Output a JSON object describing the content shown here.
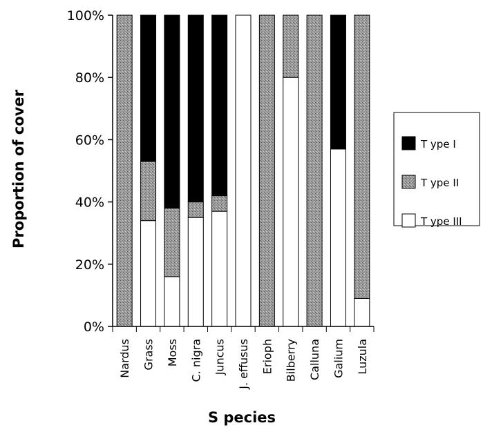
{
  "chart_data": {
    "type": "bar",
    "stacked": true,
    "normalized": true,
    "categories": [
      "Nardus",
      "Grass",
      "Moss",
      "C. nigra",
      "Juncus",
      "J. effusus",
      "Erioph",
      "Bilberry",
      "Calluna",
      "Galium",
      "Luzula"
    ],
    "series": [
      {
        "name": "Type III",
        "values": [
          0,
          34,
          16,
          35,
          37,
          100,
          0,
          80,
          0,
          57,
          9
        ],
        "color": "#ffffff"
      },
      {
        "name": "Type II",
        "values": [
          100,
          19,
          22,
          5,
          5,
          0,
          100,
          20,
          100,
          0,
          91
        ],
        "color": "#8c8c8c"
      },
      {
        "name": "Type I",
        "values": [
          0,
          47,
          62,
          60,
          58,
          0,
          0,
          0,
          0,
          43,
          0
        ],
        "color": "#000000"
      }
    ],
    "legend_order": [
      "Type I",
      "Type II",
      "Type III"
    ],
    "legend_labels": [
      "T ype I",
      "T ype II",
      "T ype III"
    ],
    "legend_position": "right",
    "ylim": [
      0,
      100
    ],
    "yticks": [
      "0%",
      "20%",
      "40%",
      "60%",
      "80%",
      "100%"
    ],
    "xlabel": "S pecies",
    "ylabel": "Proportion of cover",
    "grid": false
  }
}
